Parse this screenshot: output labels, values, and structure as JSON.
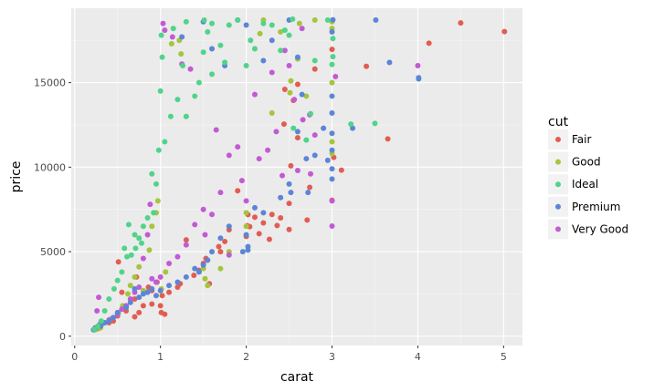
{
  "chart_data": {
    "type": "scatter",
    "title": "",
    "xlabel": "carat",
    "ylabel": "price",
    "xlim": [
      -0.04,
      5.22
    ],
    "ylim": [
      -550,
      19400
    ],
    "x_ticks": [
      "0",
      "1",
      "2",
      "3",
      "4",
      "5"
    ],
    "y_ticks": [
      "0",
      "5000",
      "10000",
      "15000"
    ],
    "x_tick_values": [
      0,
      1,
      2,
      3,
      4,
      5
    ],
    "y_tick_values": [
      0,
      5000,
      10000,
      15000
    ],
    "grid": true,
    "legend": {
      "title": "cut",
      "position": "right"
    },
    "colors": {
      "panel": "#ebebeb",
      "grid_major": "#ffffff",
      "grid_minor": "#f5f5f5",
      "legend_key_bg": "#f2f2f2"
    },
    "series": [
      {
        "name": "Fair",
        "color": "#e15d52",
        "points": [
          [
            5.01,
            18018
          ],
          [
            4.5,
            18531
          ],
          [
            4.13,
            17329
          ],
          [
            3.65,
            11668
          ],
          [
            3.4,
            15964
          ],
          [
            3.11,
            9823
          ],
          [
            3.02,
            10577
          ],
          [
            3.0,
            16970
          ],
          [
            3.0,
            8040
          ],
          [
            2.74,
            8807
          ],
          [
            2.71,
            6870
          ],
          [
            2.5,
            6311
          ],
          [
            2.5,
            7854
          ],
          [
            2.52,
            10076
          ],
          [
            2.6,
            11740
          ],
          [
            2.44,
            12545
          ],
          [
            2.02,
            7195
          ],
          [
            2.1,
            7040
          ],
          [
            2.2,
            6700
          ],
          [
            2.27,
            5733
          ],
          [
            2.01,
            6539
          ],
          [
            2.04,
            6480
          ],
          [
            2.15,
            6060
          ],
          [
            2.0,
            5900
          ],
          [
            2.3,
            7200
          ],
          [
            2.36,
            6550
          ],
          [
            2.55,
            13950
          ],
          [
            2.6,
            14900
          ],
          [
            1.75,
            5600
          ],
          [
            1.8,
            6300
          ],
          [
            1.7,
            5000
          ],
          [
            1.68,
            5300
          ],
          [
            1.53,
            4600
          ],
          [
            1.5,
            4300
          ],
          [
            1.45,
            3900
          ],
          [
            1.39,
            3600
          ],
          [
            1.23,
            3100
          ],
          [
            1.2,
            2900
          ],
          [
            1.1,
            2600
          ],
          [
            1.02,
            2400
          ],
          [
            1.0,
            1800
          ],
          [
            1.01,
            1400
          ],
          [
            0.9,
            1900
          ],
          [
            0.9,
            2700
          ],
          [
            0.8,
            1800
          ],
          [
            0.75,
            1400
          ],
          [
            0.7,
            1150
          ],
          [
            0.7,
            2200
          ],
          [
            0.6,
            1500
          ],
          [
            0.5,
            1200
          ],
          [
            0.51,
            4400
          ],
          [
            0.55,
            2600
          ],
          [
            0.45,
            900
          ],
          [
            0.4,
            800
          ],
          [
            0.3,
            500
          ],
          [
            0.27,
            450
          ],
          [
            0.23,
            380
          ],
          [
            0.96,
            3200
          ],
          [
            1.05,
            1300
          ],
          [
            1.3,
            5700
          ],
          [
            1.57,
            3100
          ],
          [
            1.9,
            8600
          ],
          [
            2.8,
            15800
          ],
          [
            2.45,
            14600
          ],
          [
            2.4,
            7000
          ],
          [
            0.72,
            3500
          ],
          [
            0.86,
            2900
          ]
        ]
      },
      {
        "name": "Good",
        "color": "#a4c53c",
        "points": [
          [
            3.0,
            18600
          ],
          [
            2.8,
            18700
          ],
          [
            3.0,
            18200
          ],
          [
            3.0,
            15000
          ],
          [
            3.0,
            11500
          ],
          [
            3.0,
            10800
          ],
          [
            2.62,
            18500
          ],
          [
            2.52,
            15100
          ],
          [
            2.51,
            14400
          ],
          [
            2.7,
            14200
          ],
          [
            2.3,
            13200
          ],
          [
            2.0,
            6500
          ],
          [
            2.0,
            7300
          ],
          [
            1.55,
            3000
          ],
          [
            1.52,
            3400
          ],
          [
            1.5,
            4000
          ],
          [
            1.22,
            17500
          ],
          [
            1.13,
            17300
          ],
          [
            1.24,
            16700
          ],
          [
            0.97,
            8000
          ],
          [
            0.9,
            6500
          ],
          [
            0.95,
            7300
          ],
          [
            0.87,
            5100
          ],
          [
            0.75,
            4100
          ],
          [
            0.7,
            3500
          ],
          [
            0.62,
            2500
          ],
          [
            0.56,
            1800
          ],
          [
            0.51,
            1400
          ],
          [
            0.41,
            1000
          ],
          [
            0.32,
            700
          ],
          [
            0.3,
            500
          ],
          [
            0.25,
            400
          ],
          [
            1.01,
            2800
          ],
          [
            1.06,
            3800
          ],
          [
            1.7,
            4000
          ],
          [
            1.8,
            5000
          ],
          [
            2.2,
            18700
          ],
          [
            2.4,
            18000
          ],
          [
            2.16,
            17900
          ],
          [
            2.6,
            16400
          ],
          [
            0.8,
            2700
          ],
          [
            0.65,
            3000
          ]
        ]
      },
      {
        "name": "Ideal",
        "color": "#4fd489",
        "points": [
          [
            3.5,
            12587
          ],
          [
            3.22,
            12545
          ],
          [
            3.01,
            16538
          ],
          [
            3.0,
            16070
          ],
          [
            3.01,
            17606
          ],
          [
            2.95,
            18700
          ],
          [
            2.75,
            13156
          ],
          [
            2.7,
            11600
          ],
          [
            2.54,
            18750
          ],
          [
            2.5,
            17800
          ],
          [
            2.4,
            16900
          ],
          [
            2.2,
            18500
          ],
          [
            2.1,
            17000
          ],
          [
            2.0,
            16000
          ],
          [
            1.9,
            18700
          ],
          [
            1.8,
            18400
          ],
          [
            1.7,
            17200
          ],
          [
            1.6,
            18500
          ],
          [
            1.55,
            18000
          ],
          [
            1.5,
            16800
          ],
          [
            1.51,
            18700
          ],
          [
            1.45,
            15000
          ],
          [
            1.4,
            14200
          ],
          [
            1.3,
            18600
          ],
          [
            1.26,
            16000
          ],
          [
            1.2,
            14000
          ],
          [
            1.12,
            13000
          ],
          [
            1.05,
            11500
          ],
          [
            1.02,
            16500
          ],
          [
            1.01,
            17800
          ],
          [
            1.0,
            14500
          ],
          [
            0.98,
            11000
          ],
          [
            0.95,
            9000
          ],
          [
            0.9,
            9600
          ],
          [
            0.85,
            7000
          ],
          [
            0.8,
            6500
          ],
          [
            0.75,
            5800
          ],
          [
            0.71,
            5200
          ],
          [
            0.7,
            6000
          ],
          [
            0.63,
            6600
          ],
          [
            0.61,
            4700
          ],
          [
            0.55,
            3800
          ],
          [
            0.5,
            3300
          ],
          [
            0.46,
            2800
          ],
          [
            0.4,
            2200
          ],
          [
            0.35,
            1500
          ],
          [
            0.31,
            900
          ],
          [
            0.27,
            600
          ],
          [
            0.23,
            400
          ],
          [
            1.3,
            13000
          ],
          [
            1.6,
            15500
          ],
          [
            1.75,
            16200
          ],
          [
            2.05,
            17500
          ],
          [
            2.3,
            18400
          ],
          [
            2.45,
            18100
          ],
          [
            2.55,
            12300
          ],
          [
            2.8,
            16300
          ],
          [
            1.15,
            18200
          ],
          [
            0.92,
            7300
          ],
          [
            0.78,
            5500
          ],
          [
            0.66,
            4800
          ],
          [
            0.58,
            5200
          ]
        ]
      },
      {
        "name": "Premium",
        "color": "#5b85d7",
        "points": [
          [
            4.01,
            15223
          ],
          [
            4.01,
            15290
          ],
          [
            3.67,
            16193
          ],
          [
            3.51,
            18701
          ],
          [
            3.24,
            12300
          ],
          [
            3.01,
            18710
          ],
          [
            3.0,
            18000
          ],
          [
            3.0,
            14200
          ],
          [
            3.0,
            13200
          ],
          [
            3.0,
            12000
          ],
          [
            3.0,
            11000
          ],
          [
            3.0,
            9900
          ],
          [
            3.0,
            9300
          ],
          [
            2.95,
            10400
          ],
          [
            2.8,
            10700
          ],
          [
            2.72,
            8500
          ],
          [
            2.6,
            12100
          ],
          [
            2.52,
            8500
          ],
          [
            2.5,
            9000
          ],
          [
            2.4,
            8200
          ],
          [
            2.2,
            7300
          ],
          [
            2.1,
            7600
          ],
          [
            2.02,
            5100
          ],
          [
            2.02,
            5300
          ],
          [
            1.96,
            5000
          ],
          [
            2.0,
            6000
          ],
          [
            1.8,
            6500
          ],
          [
            1.7,
            5800
          ],
          [
            1.6,
            5000
          ],
          [
            1.5,
            4200
          ],
          [
            1.4,
            4000
          ],
          [
            1.3,
            3500
          ],
          [
            1.2,
            3200
          ],
          [
            1.1,
            3000
          ],
          [
            1.0,
            2700
          ],
          [
            0.95,
            2400
          ],
          [
            0.9,
            2800
          ],
          [
            0.85,
            2600
          ],
          [
            0.8,
            2500
          ],
          [
            0.75,
            2300
          ],
          [
            0.7,
            2800
          ],
          [
            0.65,
            2000
          ],
          [
            0.6,
            1700
          ],
          [
            0.5,
            1400
          ],
          [
            0.45,
            1100
          ],
          [
            0.4,
            900
          ],
          [
            0.35,
            800
          ],
          [
            0.3,
            600
          ],
          [
            0.22,
            380
          ],
          [
            0.24,
            450
          ],
          [
            1.9,
            18700
          ],
          [
            2.0,
            18400
          ],
          [
            2.3,
            17500
          ],
          [
            2.5,
            18700
          ],
          [
            2.6,
            16500
          ],
          [
            2.7,
            10500
          ],
          [
            1.25,
            17700
          ],
          [
            1.5,
            18600
          ],
          [
            1.6,
            17000
          ],
          [
            1.75,
            16000
          ],
          [
            2.2,
            16300
          ],
          [
            1.55,
            4500
          ],
          [
            1.45,
            3800
          ],
          [
            2.65,
            14300
          ],
          [
            2.9,
            12300
          ]
        ]
      },
      {
        "name": "Very Good",
        "color": "#c35ad5",
        "points": [
          [
            4.0,
            16000
          ],
          [
            3.04,
            15354
          ],
          [
            3.0,
            6512
          ],
          [
            3.0,
            8000
          ],
          [
            2.8,
            11900
          ],
          [
            2.75,
            9600
          ],
          [
            2.74,
            13100
          ],
          [
            2.66,
            12800
          ],
          [
            2.56,
            14000
          ],
          [
            2.5,
            16000
          ],
          [
            2.42,
            9500
          ],
          [
            2.35,
            12100
          ],
          [
            2.3,
            15600
          ],
          [
            2.25,
            11000
          ],
          [
            2.15,
            10500
          ],
          [
            2.0,
            8000
          ],
          [
            1.95,
            9200
          ],
          [
            1.9,
            11200
          ],
          [
            1.8,
            10700
          ],
          [
            1.7,
            8500
          ],
          [
            1.6,
            7200
          ],
          [
            1.52,
            6000
          ],
          [
            1.5,
            7500
          ],
          [
            1.4,
            6600
          ],
          [
            1.3,
            5400
          ],
          [
            1.2,
            4700
          ],
          [
            1.1,
            4300
          ],
          [
            1.05,
            18100
          ],
          [
            1.03,
            18500
          ],
          [
            1.14,
            17700
          ],
          [
            1.0,
            3500
          ],
          [
            0.95,
            3200
          ],
          [
            0.9,
            3400
          ],
          [
            0.85,
            6000
          ],
          [
            0.8,
            4600
          ],
          [
            0.75,
            2900
          ],
          [
            0.7,
            2600
          ],
          [
            0.65,
            2200
          ],
          [
            0.6,
            1800
          ],
          [
            0.55,
            1600
          ],
          [
            0.5,
            1300
          ],
          [
            0.45,
            1100
          ],
          [
            0.4,
            950
          ],
          [
            0.3,
            750
          ],
          [
            0.28,
            2300
          ],
          [
            0.26,
            1500
          ],
          [
            0.24,
            500
          ],
          [
            1.25,
            16100
          ],
          [
            1.35,
            15800
          ],
          [
            1.65,
            12200
          ],
          [
            2.1,
            14300
          ],
          [
            2.45,
            16900
          ],
          [
            2.65,
            18200
          ],
          [
            1.8,
            4800
          ],
          [
            0.88,
            7800
          ],
          [
            2.6,
            9800
          ]
        ]
      }
    ]
  }
}
